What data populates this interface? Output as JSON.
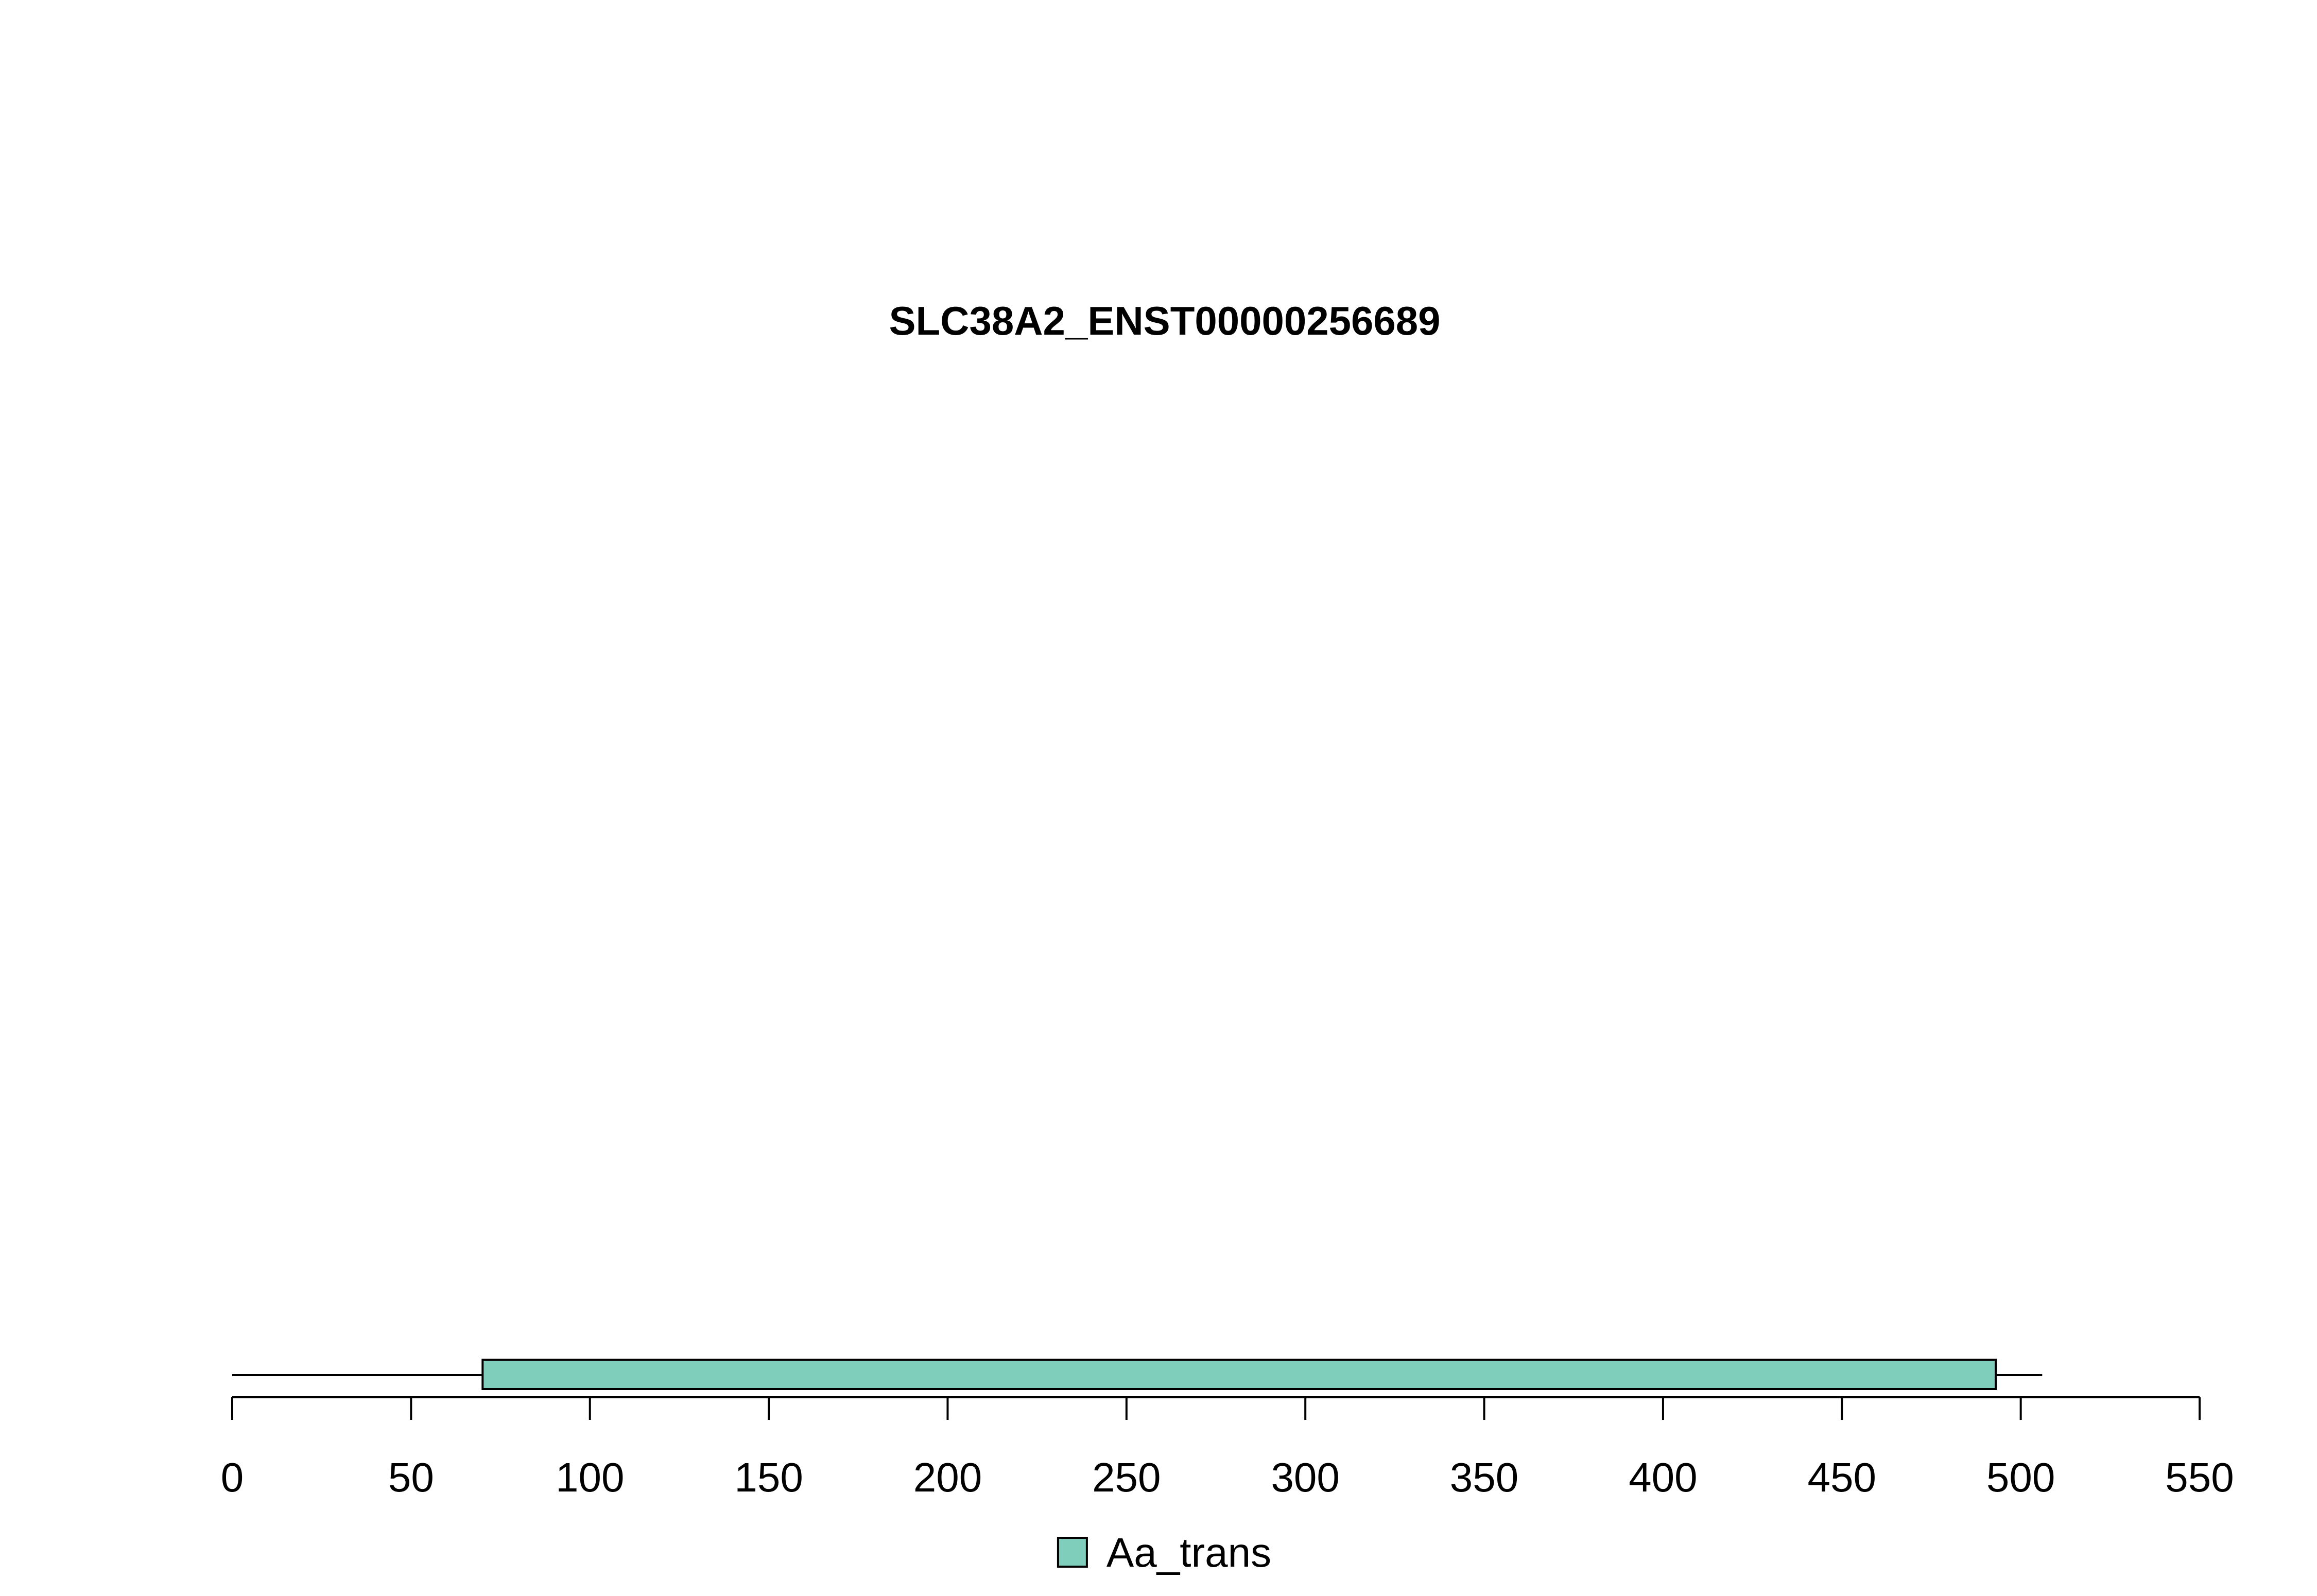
{
  "chart_data": {
    "type": "protein-domain",
    "title": "SLC38A2_ENST00000256689",
    "protein_length": 506,
    "xlim": [
      0,
      550
    ],
    "ticks": [
      0,
      50,
      100,
      150,
      200,
      250,
      300,
      350,
      400,
      450,
      500,
      550
    ],
    "tick_labels": [
      "0",
      "50",
      "100",
      "150",
      "200",
      "250",
      "300",
      "350",
      "400",
      "450",
      "500",
      "550"
    ],
    "domains": [
      {
        "name": "Aa_trans",
        "start": 70,
        "end": 493,
        "color": "#7FCDBB"
      }
    ],
    "legend": {
      "position": "bottom-center",
      "items": [
        {
          "label": "Aa_trans",
          "color": "#7FCDBB"
        }
      ]
    },
    "grid": false
  }
}
